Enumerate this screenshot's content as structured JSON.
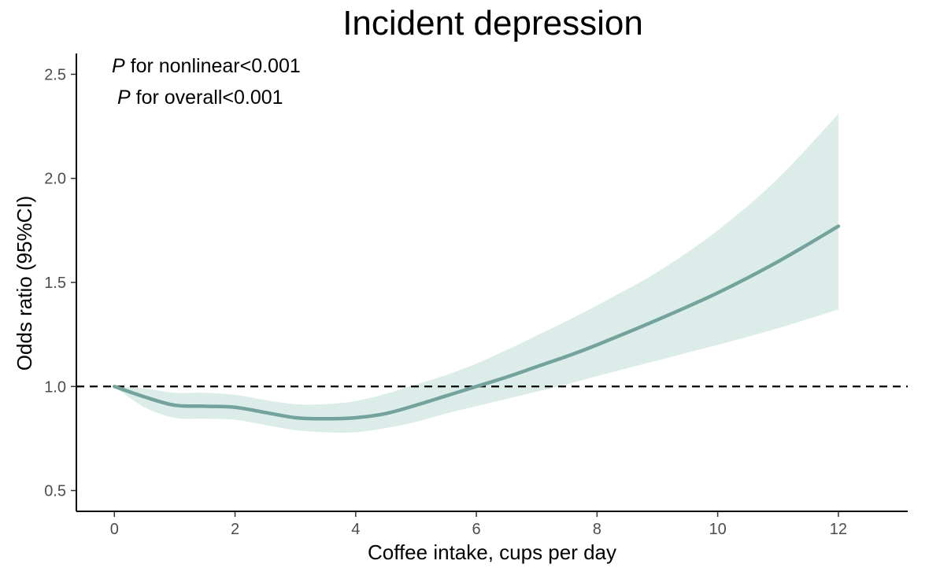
{
  "chart_data": {
    "type": "area",
    "title": "Incident depression",
    "xlabel": "Coffee intake, cups per day",
    "ylabel": "Odds ratio (95%CI)",
    "xlim": [
      -0.63,
      13.15
    ],
    "ylim": [
      0.4,
      2.6
    ],
    "xticks": [
      0,
      2,
      4,
      6,
      8,
      10,
      12
    ],
    "yticks": [
      0.5,
      1.0,
      1.5,
      2.0,
      2.5
    ],
    "xtick_labels": [
      "0",
      "2",
      "4",
      "6",
      "8",
      "10",
      "12"
    ],
    "ytick_labels": [
      "0.5",
      "1.0",
      "1.5",
      "2.0",
      "2.5"
    ],
    "reference_line": {
      "y": 1.0,
      "style": "dashed",
      "color": "#000000"
    },
    "annotations": [
      {
        "p": "P",
        "text": " for nonlinear<0.001"
      },
      {
        "p": "P",
        "text": " for overall<0.001"
      }
    ],
    "series": [
      {
        "x": [
          0,
          0.5,
          1.0,
          1.5,
          2.0,
          2.5,
          3.0,
          3.5,
          4.0,
          4.5,
          5.0,
          5.5,
          6.0,
          6.5,
          7.0,
          7.5,
          8.0,
          9.0,
          10.0,
          11.0,
          12.0
        ],
        "y": [
          1.0,
          0.95,
          0.91,
          0.905,
          0.9,
          0.875,
          0.85,
          0.845,
          0.85,
          0.87,
          0.91,
          0.955,
          1.0,
          1.045,
          1.095,
          1.145,
          1.2,
          1.32,
          1.45,
          1.6,
          1.77
        ],
        "lower": [
          1.0,
          0.9,
          0.85,
          0.845,
          0.84,
          0.815,
          0.79,
          0.78,
          0.78,
          0.8,
          0.83,
          0.87,
          0.905,
          0.94,
          0.975,
          1.01,
          1.05,
          1.125,
          1.2,
          1.28,
          1.37
        ],
        "upper": [
          1.0,
          0.99,
          0.97,
          0.97,
          0.96,
          0.935,
          0.915,
          0.915,
          0.93,
          0.965,
          1.01,
          1.055,
          1.11,
          1.175,
          1.245,
          1.315,
          1.39,
          1.55,
          1.75,
          2.0,
          2.31
        ],
        "line_color": "#73a39c",
        "band_color": "#dcede9"
      }
    ]
  }
}
